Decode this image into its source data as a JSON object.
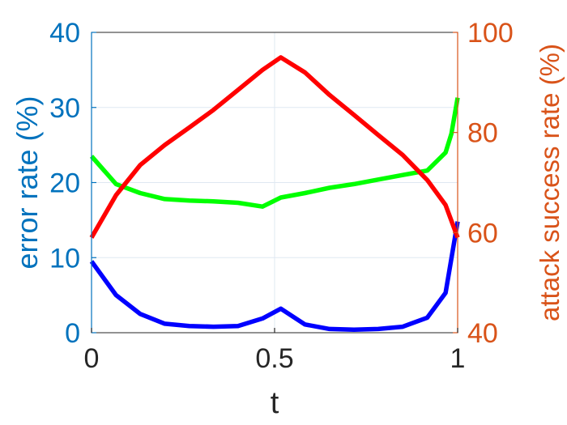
{
  "chart_data": {
    "type": "line",
    "title": "",
    "xlabel": "t",
    "ylabel_left": "error rate (%)",
    "ylabel_right": "attack success rate (%)",
    "xlim": [
      0,
      1
    ],
    "ylim_left": [
      0,
      40
    ],
    "ylim_right": [
      40,
      100
    ],
    "grid": true,
    "legend": "none",
    "x_ticks": [
      0,
      0.5,
      1
    ],
    "x_tick_labels": [
      "0",
      "0.5",
      "1"
    ],
    "y_left_ticks": [
      0,
      10,
      20,
      30,
      40
    ],
    "y_left_tick_labels": [
      "0",
      "10",
      "20",
      "30",
      "40"
    ],
    "y_right_ticks": [
      40,
      60,
      80,
      100
    ],
    "y_right_tick_labels": [
      "40",
      "60",
      "80",
      "100"
    ],
    "colors": {
      "left_axis": "#0072BD",
      "right_axis": "#D95319",
      "grid": "#dfe8f2",
      "box": "#262626"
    },
    "series": [
      {
        "axis": "left",
        "color": "#0000ff",
        "x": [
          0,
          0.067,
          0.133,
          0.2,
          0.267,
          0.333,
          0.4,
          0.467,
          0.517,
          0.583,
          0.65,
          0.717,
          0.783,
          0.85,
          0.917,
          0.967,
          1
        ],
        "y": [
          9.5,
          5.0,
          2.5,
          1.2,
          0.9,
          0.8,
          0.9,
          1.9,
          3.2,
          1.1,
          0.5,
          0.4,
          0.5,
          0.8,
          2.0,
          5.3,
          14.8
        ]
      },
      {
        "axis": "left",
        "color": "#00ff00",
        "x": [
          0,
          0.067,
          0.133,
          0.2,
          0.267,
          0.333,
          0.4,
          0.467,
          0.517,
          0.583,
          0.65,
          0.717,
          0.783,
          0.85,
          0.917,
          0.967,
          0.983,
          1
        ],
        "y": [
          23.5,
          19.8,
          18.6,
          17.8,
          17.6,
          17.5,
          17.3,
          16.8,
          18.0,
          18.6,
          19.3,
          19.8,
          20.4,
          21.0,
          21.6,
          24.0,
          26.5,
          31.3
        ]
      },
      {
        "axis": "right",
        "color": "#ff0000",
        "x": [
          0,
          0.067,
          0.133,
          0.2,
          0.267,
          0.333,
          0.4,
          0.467,
          0.517,
          0.583,
          0.65,
          0.717,
          0.783,
          0.85,
          0.917,
          0.967,
          1
        ],
        "y": [
          59,
          67.5,
          73.5,
          77.5,
          81,
          84.5,
          88.5,
          92.5,
          95,
          92,
          87.5,
          83.5,
          79.5,
          75.5,
          70.5,
          65.5,
          59
        ]
      }
    ]
  }
}
